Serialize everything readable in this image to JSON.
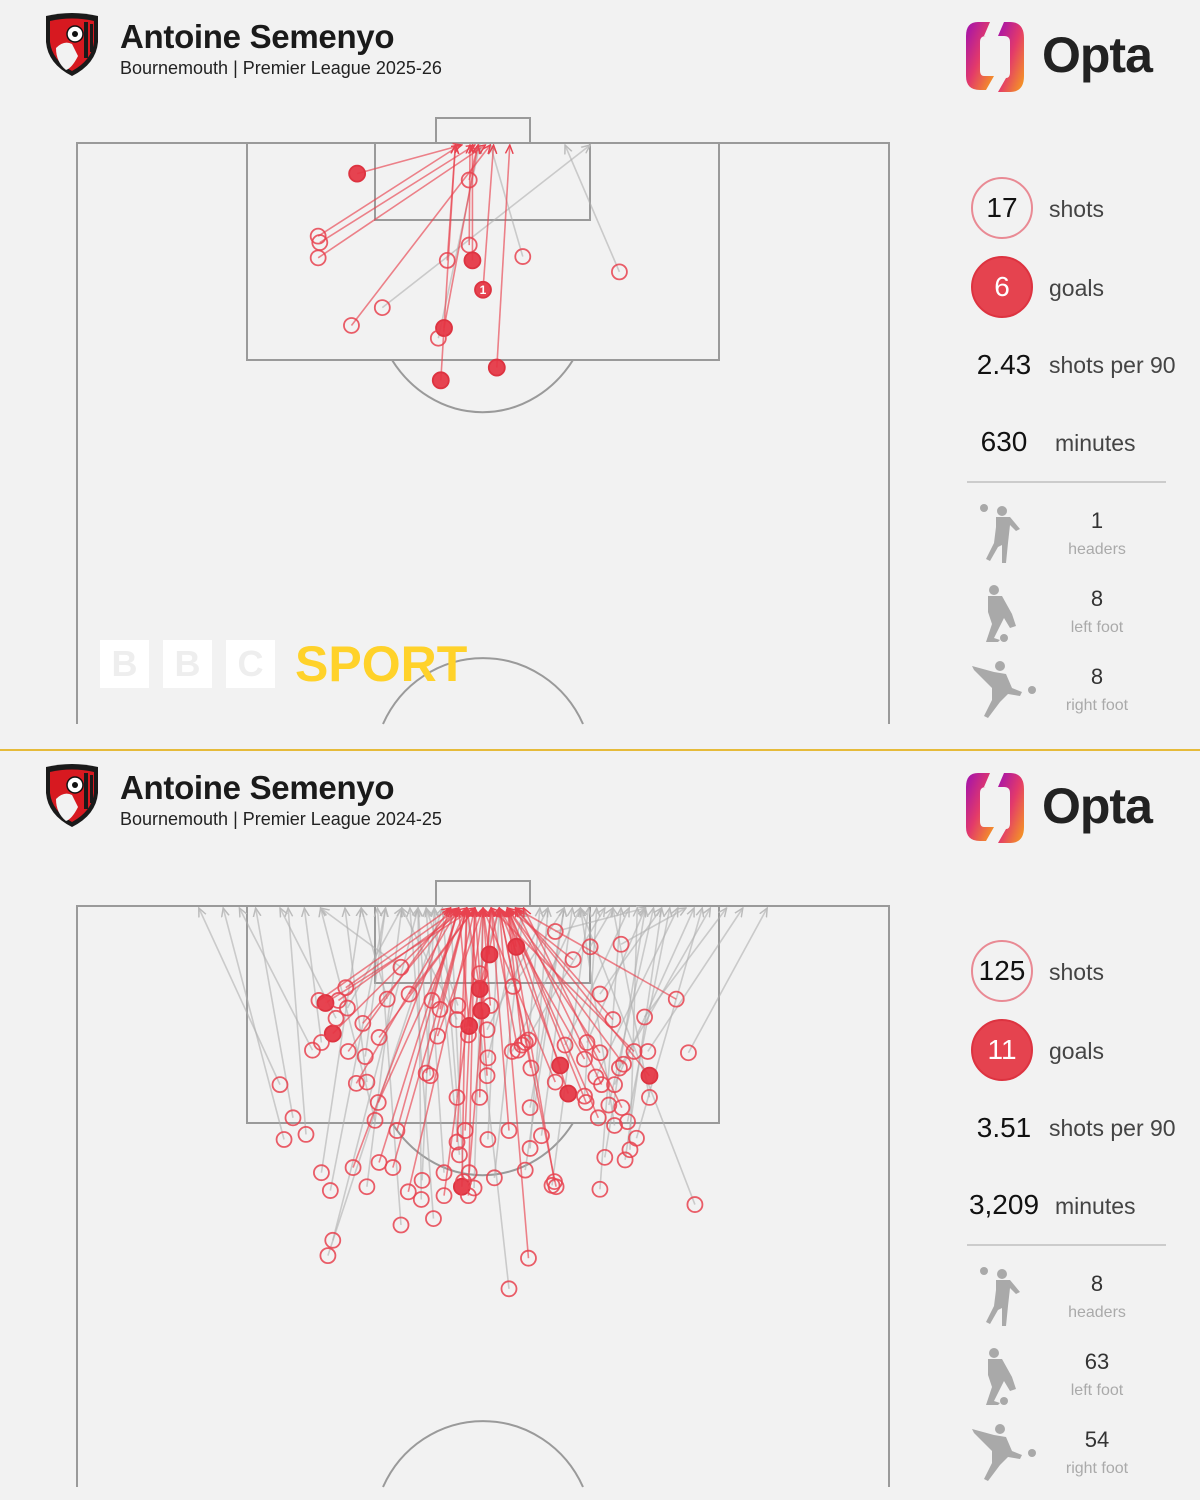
{
  "watermark": {
    "letters": [
      "B",
      "B",
      "C"
    ],
    "word": "SPORT"
  },
  "brand": {
    "opta": "Opta"
  },
  "colors": {
    "shot": "#e8424f",
    "goal_fill": "#e5434f",
    "off_target_line": "#b9b9b9",
    "pitch_line": "#9a9a9a",
    "divider": "#e6bb3a"
  },
  "panels": [
    {
      "player": "Antoine Semenyo",
      "subtitle": "Bournemouth | Premier League 2025-26",
      "stats": {
        "shots": "17",
        "shots_label": "shots",
        "goals": "6",
        "goals_label": "goals",
        "per90": "2.43",
        "per90_label": "shots per 90",
        "minutes": "630",
        "minutes_label": "minutes",
        "headers": "1",
        "headers_label": "headers",
        "left_foot": "8",
        "left_foot_label": "left foot",
        "right_foot": "8",
        "right_foot_label": "right foot"
      }
    },
    {
      "player": "Antoine Semenyo",
      "subtitle": "Bournemouth | Premier League 2024-25",
      "stats": {
        "shots": "125",
        "shots_label": "shots",
        "goals": "11",
        "goals_label": "goals",
        "per90": "3.51",
        "per90_label": "shots per 90",
        "minutes": "3,209",
        "minutes_label": "minutes",
        "headers": "8",
        "headers_label": "headers",
        "left_foot": "63",
        "left_foot_label": "left foot",
        "right_foot": "54",
        "right_foot_label": "right foot"
      }
    }
  ],
  "chart_data": [
    {
      "type": "scatter",
      "title": "Antoine Semenyo",
      "subtitle": "Bournemouth | Premier League 2025-26",
      "pitch": "opta half-pitch, attacking upward",
      "fields": [
        "x",
        "y",
        "outcome",
        "end_y",
        "label"
      ],
      "shots": [
        [
          97.6,
          34.5,
          "goal",
          47.4,
          ""
        ],
        [
          97.1,
          48.3,
          "on",
          49.4,
          ""
        ],
        [
          92.7,
          29.7,
          "on",
          47.2,
          ""
        ],
        [
          92.2,
          29.9,
          "on",
          49.0,
          ""
        ],
        [
          91.0,
          29.7,
          "on",
          50.3,
          ""
        ],
        [
          92.0,
          48.3,
          "on",
          48.4,
          ""
        ],
        [
          90.8,
          45.6,
          "on",
          46.6,
          ""
        ],
        [
          90.8,
          48.7,
          "goal",
          48.7,
          ""
        ],
        [
          91.1,
          54.9,
          "off",
          50.9,
          ""
        ],
        [
          89.9,
          66.8,
          "off",
          60.1,
          ""
        ],
        [
          88.5,
          50.0,
          "goal",
          51.3,
          "1"
        ],
        [
          87.1,
          37.6,
          "off",
          63.2,
          ""
        ],
        [
          85.7,
          33.8,
          "on",
          50.9,
          ""
        ],
        [
          85.5,
          45.2,
          "goal",
          49.4,
          ""
        ],
        [
          84.7,
          44.5,
          "off",
          49.6,
          ""
        ],
        [
          81.4,
          44.8,
          "goal",
          46.6,
          ""
        ],
        [
          82.4,
          51.7,
          "goal",
          53.3,
          ""
        ]
      ]
    },
    {
      "type": "scatter",
      "title": "Antoine Semenyo",
      "subtitle": "Bournemouth | Premier League 2024-25",
      "pitch": "opta half-pitch, attacking upward",
      "fields": [
        "x",
        "y",
        "outcome",
        "end_y",
        "label"
      ],
      "shots": [
        [
          92.4,
          30.6,
          "goal",
          49,
          ""
        ],
        [
          90.0,
          31.5,
          "goal",
          47,
          ""
        ],
        [
          96.2,
          50.8,
          "goal",
          50,
          ""
        ],
        [
          96.8,
          54.1,
          "goal",
          53,
          ""
        ],
        [
          93.5,
          49.6,
          "goal",
          48,
          ""
        ],
        [
          91.8,
          49.8,
          "goal",
          51,
          ""
        ],
        [
          90.6,
          48.3,
          "goal",
          47,
          ""
        ],
        [
          87.5,
          59.5,
          "goal",
          52,
          ""
        ],
        [
          85.3,
          60.5,
          "goal",
          53,
          ""
        ],
        [
          86.7,
          70.5,
          "goal",
          54,
          ""
        ],
        [
          78.0,
          47.4,
          "goal",
          48,
          ""
        ],
        [
          95.2,
          39.9,
          "off",
          30,
          ""
        ],
        [
          98.0,
          58.9,
          "off",
          70,
          ""
        ],
        [
          96.8,
          63.2,
          "off",
          66,
          ""
        ],
        [
          97.0,
          67.0,
          "off",
          75,
          ""
        ],
        [
          95.8,
          61.1,
          "on",
          53,
          ""
        ],
        [
          93.6,
          33.1,
          "on",
          47,
          ""
        ],
        [
          92.6,
          29.8,
          "on",
          46,
          ""
        ],
        [
          92.7,
          73.8,
          "on",
          54,
          ""
        ],
        [
          92.6,
          32.2,
          "on",
          48,
          ""
        ],
        [
          92.0,
          33.3,
          "off",
          40,
          ""
        ],
        [
          93.1,
          40.9,
          "on",
          49,
          ""
        ],
        [
          92.7,
          38.2,
          "off",
          35,
          ""
        ],
        [
          92.2,
          46.9,
          "off",
          43,
          ""
        ],
        [
          91.9,
          44.7,
          "on",
          48,
          ""
        ],
        [
          93.7,
          53.7,
          "off",
          60,
          ""
        ],
        [
          93.1,
          64.4,
          "off",
          72,
          ""
        ],
        [
          91.1,
          66.0,
          "on",
          54,
          ""
        ],
        [
          91.3,
          69.9,
          "off",
          80,
          ""
        ],
        [
          90.8,
          35.2,
          "on",
          47,
          ""
        ],
        [
          91.2,
          31.9,
          "off",
          25,
          ""
        ],
        [
          89.7,
          37.2,
          "on",
          49,
          ""
        ],
        [
          89.8,
          44.4,
          "on",
          50,
          ""
        ],
        [
          90.3,
          50.5,
          "off",
          58,
          ""
        ],
        [
          89.3,
          55.2,
          "off",
          65,
          ""
        ],
        [
          89.9,
          48.2,
          "on",
          52,
          ""
        ],
        [
          91.1,
          46.8,
          "off",
          40,
          ""
        ],
        [
          88.7,
          54.3,
          "on",
          51,
          ""
        ],
        [
          88.7,
          29.0,
          "off",
          20,
          ""
        ],
        [
          88.6,
          33.4,
          "on",
          46,
          ""
        ],
        [
          89.3,
          30.1,
          "off",
          28,
          ""
        ],
        [
          88.2,
          35.5,
          "off",
          38,
          ""
        ],
        [
          86.9,
          43.0,
          "on",
          48,
          ""
        ],
        [
          88.1,
          50.6,
          "off",
          55,
          ""
        ],
        [
          87.3,
          55.9,
          "on",
          52,
          ""
        ],
        [
          86.2,
          58.9,
          "on",
          50,
          ""
        ],
        [
          89.1,
          60.1,
          "off",
          68,
          ""
        ],
        [
          89.3,
          62.8,
          "off",
          70,
          ""
        ],
        [
          88.5,
          64.4,
          "on",
          53,
          ""
        ],
        [
          87.3,
          66.8,
          "off",
          78,
          ""
        ],
        [
          88.6,
          68.6,
          "on",
          51,
          ""
        ],
        [
          88.6,
          70.3,
          "off",
          82,
          ""
        ],
        [
          88.5,
          75.3,
          "off",
          85,
          ""
        ],
        [
          86.0,
          25.0,
          "off",
          15,
          ""
        ],
        [
          86.1,
          34.4,
          "on",
          47,
          ""
        ],
        [
          86.2,
          35.7,
          "off",
          33,
          ""
        ],
        [
          86.7,
          43.5,
          "off",
          42,
          ""
        ],
        [
          86.7,
          50.5,
          "on",
          49,
          ""
        ],
        [
          88.6,
          53.6,
          "off",
          62,
          ""
        ],
        [
          89.1,
          54.8,
          "on",
          53,
          ""
        ],
        [
          88.0,
          62.5,
          "on",
          52,
          ""
        ],
        [
          86.6,
          63.9,
          "off",
          74,
          ""
        ],
        [
          86.0,
          64.6,
          "on",
          54,
          ""
        ],
        [
          86.0,
          66.2,
          "off",
          76,
          ""
        ],
        [
          85.0,
          70.5,
          "off",
          66,
          ""
        ],
        [
          89.5,
          55.6,
          "off",
          57,
          ""
        ],
        [
          84.6,
          37.1,
          "on",
          48,
          ""
        ],
        [
          85.0,
          49.6,
          "on",
          50,
          ""
        ],
        [
          85.0,
          46.8,
          "off",
          45,
          ""
        ],
        [
          84.6,
          62.7,
          "on",
          53,
          ""
        ],
        [
          85.1,
          62.5,
          "off",
          64,
          ""
        ],
        [
          84.4,
          65.5,
          "off",
          71,
          ""
        ],
        [
          84.2,
          67.1,
          "on",
          55,
          ""
        ],
        [
          83.2,
          36.7,
          "off",
          30,
          ""
        ],
        [
          83.4,
          26.6,
          "off",
          22,
          ""
        ],
        [
          82.1,
          28.2,
          "off",
          26,
          ""
        ],
        [
          81.7,
          25.5,
          "off",
          18,
          ""
        ],
        [
          82.4,
          39.4,
          "on",
          47,
          ""
        ],
        [
          82.4,
          47.8,
          "on",
          49,
          ""
        ],
        [
          81.7,
          50.6,
          "off",
          52,
          ""
        ],
        [
          82.4,
          53.2,
          "on",
          51,
          ""
        ],
        [
          81.5,
          46.8,
          "on",
          48,
          ""
        ],
        [
          80.5,
          47.1,
          "off",
          44,
          ""
        ],
        [
          84.2,
          55.8,
          "off",
          60,
          ""
        ],
        [
          83.4,
          64.2,
          "on",
          53,
          ""
        ],
        [
          83.1,
          67.8,
          "off",
          73,
          ""
        ],
        [
          81.8,
          68.9,
          "off",
          77,
          ""
        ],
        [
          82.8,
          66.2,
          "off",
          62,
          ""
        ],
        [
          80.9,
          68.1,
          "off",
          69,
          ""
        ],
        [
          81.0,
          55.8,
          "off",
          58,
          ""
        ],
        [
          79.1,
          30.1,
          "off",
          35,
          ""
        ],
        [
          77.7,
          31.2,
          "off",
          38,
          ""
        ],
        [
          79.5,
          34.0,
          "on",
          46,
          ""
        ],
        [
          78.0,
          35.7,
          "off",
          40,
          ""
        ],
        [
          79.9,
          37.2,
          "on",
          47,
          ""
        ],
        [
          79.5,
          38.9,
          "on",
          48,
          ""
        ],
        [
          77.6,
          40.8,
          "on",
          49,
          ""
        ],
        [
          78.5,
          42.5,
          "off",
          44,
          ""
        ],
        [
          77.3,
          45.2,
          "on",
          50,
          ""
        ],
        [
          77.0,
          42.4,
          "off",
          42,
          ""
        ],
        [
          79.1,
          48.3,
          "on",
          51,
          ""
        ],
        [
          78.7,
          51.4,
          "off",
          55,
          ""
        ],
        [
          79.3,
          55.2,
          "off",
          60,
          ""
        ],
        [
          78.1,
          58.5,
          "off",
          63,
          ""
        ],
        [
          78.4,
          58.8,
          "on",
          53,
          ""
        ],
        [
          77.8,
          64.4,
          "off",
          67,
          ""
        ],
        [
          80.3,
          65.0,
          "off",
          70,
          ""
        ],
        [
          80.1,
          67.5,
          "off",
          72,
          ""
        ],
        [
          78.4,
          47.6,
          "off",
          46,
          ""
        ],
        [
          77.3,
          48.2,
          "on",
          49,
          ""
        ],
        [
          75.5,
          43.9,
          "off",
          41,
          ""
        ],
        [
          75.0,
          39.9,
          "off",
          37,
          ""
        ],
        [
          79.1,
          45.2,
          "off",
          43,
          ""
        ],
        [
          73.8,
          31.5,
          "off",
          42,
          ""
        ],
        [
          72.6,
          30.9,
          "off",
          45,
          ""
        ],
        [
          72.4,
          55.6,
          "on",
          52,
          ""
        ],
        [
          70.0,
          53.2,
          "off",
          48,
          ""
        ],
        [
          76.6,
          76.1,
          "off",
          62,
          ""
        ],
        [
          78.0,
          59.0,
          "on",
          52,
          ""
        ],
        [
          77.9,
          48.9,
          "off",
          50,
          ""
        ],
        [
          82.0,
          57.2,
          "off",
          61,
          ""
        ],
        [
          87.6,
          67.3,
          "on",
          53,
          ""
        ],
        [
          92.2,
          50.9,
          "on",
          50,
          ""
        ],
        [
          94.7,
          49.6,
          "off",
          52,
          ""
        ],
        [
          92.6,
          43.7,
          "on",
          47,
          ""
        ]
      ]
    }
  ]
}
